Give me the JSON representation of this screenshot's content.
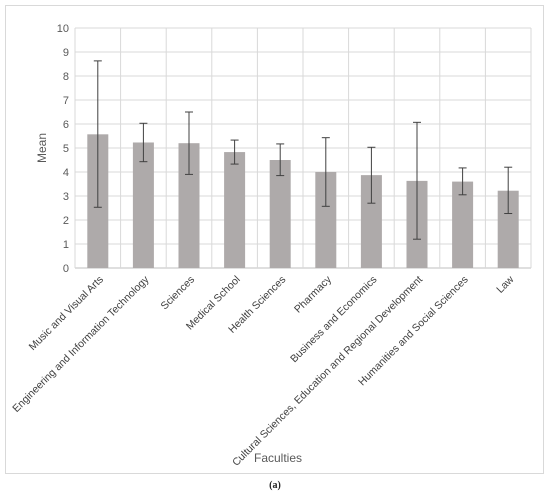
{
  "chart_data": {
    "type": "bar",
    "xlabel": "Faculties",
    "ylabel": "Mean",
    "ylim": [
      0,
      10
    ],
    "yticks": [
      0,
      1,
      2,
      3,
      4,
      5,
      6,
      7,
      8,
      9,
      10
    ],
    "grid": true,
    "categories": [
      "Music and Visual Arts",
      "Engineering and Information Technology",
      "Sciences",
      "Medical School",
      "Health Sciences",
      "Pharmacy",
      "Business and Economics",
      "Cultural Sciences, Education and Regional Development",
      "Humanities and Social Sciences",
      "Law"
    ],
    "values": [
      5.57,
      5.23,
      5.2,
      4.83,
      4.5,
      4.0,
      3.87,
      3.63,
      3.6,
      3.22
    ],
    "error_low": [
      2.53,
      4.43,
      3.9,
      4.33,
      3.85,
      2.57,
      2.7,
      1.2,
      3.05,
      2.27
    ],
    "error_high": [
      8.63,
      6.03,
      6.5,
      5.33,
      5.17,
      5.43,
      5.03,
      6.07,
      4.17,
      4.2
    ],
    "bar_color": "#aeaaaa"
  },
  "caption": "(a)"
}
